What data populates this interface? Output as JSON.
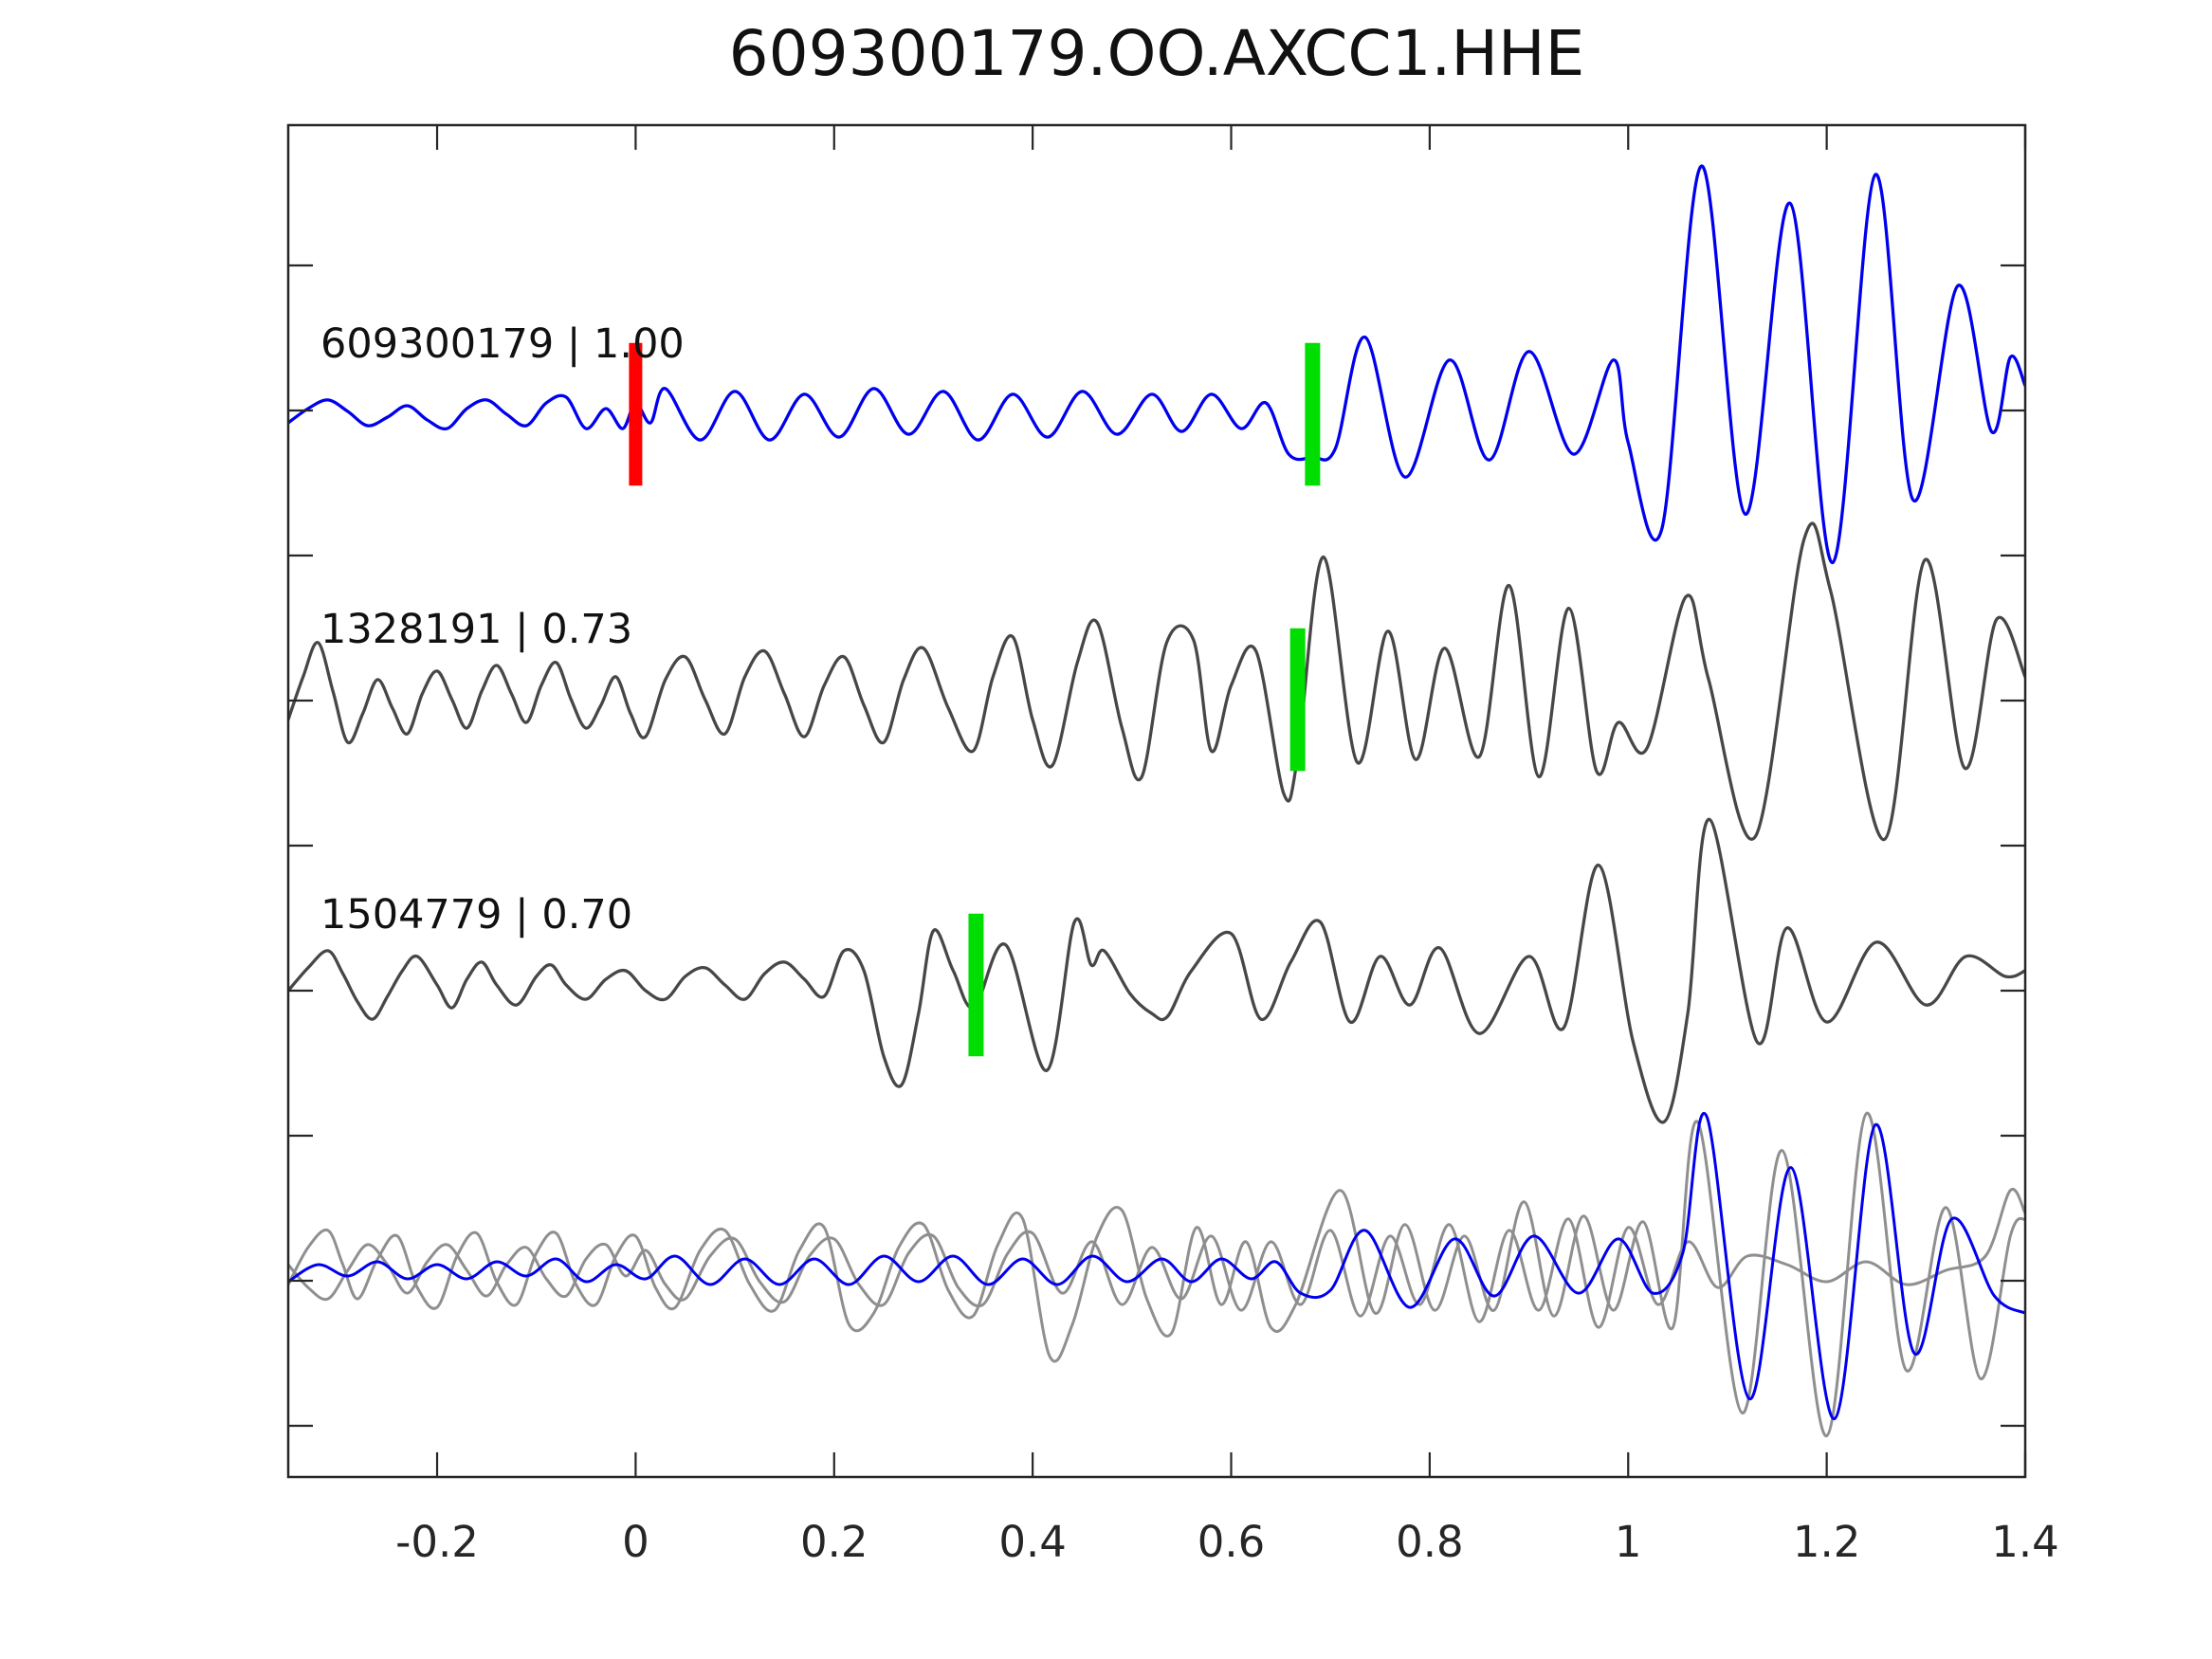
{
  "window": {
    "title": "609300179.OO.AXCC1.HHE"
  },
  "chart_data": {
    "type": "line",
    "title": "609300179.OO.AXCC1.HHE",
    "subtitle": "",
    "xlabel": "",
    "ylabel": "",
    "grid": false,
    "legend": false,
    "x_range": [
      -0.35,
      1.4
    ],
    "x_ticks": [
      -0.2,
      0,
      0.2,
      0.4,
      0.6,
      0.8,
      1,
      1.2,
      1.4
    ],
    "x_tick_labels": [
      "-0.2",
      "0",
      "0.2",
      "0.4",
      "0.6",
      "0.8",
      "1",
      "1.2",
      "1.4"
    ],
    "amplitude_unit_per_row": 1,
    "pick_marker_half_height": 0.25,
    "colors": {
      "template_trace": "#0000ee",
      "detection_trace": "#474747",
      "overlay_gray_trace": "#8f8f8f",
      "pick_green": "#00dd00",
      "pick_red": "#ff0000",
      "axis": "#262626",
      "text": "#111111"
    },
    "rows": [
      {
        "name": "template",
        "id": "609300179",
        "cc": 1.0,
        "label": "609300179 | 1.00",
        "offset": 3,
        "color_key": "template_trace",
        "picks": [
          {
            "x": 0.0,
            "color_key": "pick_red"
          },
          {
            "x": 0.682,
            "color_key": "pick_green"
          }
        ],
        "points": [
          -0.35,
          -0.03,
          -0.33,
          0.02,
          -0.31,
          0.05,
          -0.29,
          0.01,
          -0.27,
          -0.04,
          -0.25,
          -0.01,
          -0.23,
          0.03,
          -0.21,
          -0.02,
          -0.19,
          -0.05,
          -0.17,
          0.02,
          -0.15,
          0.05,
          -0.13,
          0,
          -0.11,
          -0.04,
          -0.09,
          0.04,
          -0.07,
          0.06,
          -0.05,
          -0.05,
          -0.03,
          0.02,
          -0.013,
          -0.05,
          0,
          0.04,
          0.015,
          -0.03,
          0.03,
          0.09,
          0.065,
          -0.09,
          0.1,
          0.08,
          0.135,
          -0.09,
          0.17,
          0.07,
          0.205,
          -0.08,
          0.24,
          0.09,
          0.275,
          -0.07,
          0.31,
          0.08,
          0.345,
          -0.09,
          0.38,
          0.07,
          0.415,
          -0.08,
          0.45,
          0.08,
          0.485,
          -0.07,
          0.52,
          0.07,
          0.55,
          -0.06,
          0.58,
          0.07,
          0.61,
          -0.05,
          0.635,
          0.04,
          0.658,
          -0.14,
          0.682,
          -0.15,
          0.705,
          -0.12,
          0.735,
          0.27,
          0.775,
          -0.22,
          0.82,
          0.19,
          0.86,
          -0.16,
          0.9,
          0.22,
          0.945,
          -0.14,
          0.985,
          0.19,
          1,
          -0.1,
          1.034,
          -0.4,
          1.074,
          0.87,
          1.118,
          -0.35,
          1.163,
          0.74,
          1.206,
          -0.52,
          1.249,
          0.84,
          1.287,
          -0.3,
          1.332,
          0.45,
          1.366,
          -0.06,
          1.385,
          0.2,
          1.4,
          0.1
        ]
      },
      {
        "name": "detection-1",
        "id": "1328191",
        "cc": 0.73,
        "label": "1328191 | 0.73",
        "offset": 2,
        "color_key": "detection_trace",
        "picks": [
          {
            "x": 0.667,
            "color_key": "pick_green"
          }
        ],
        "points": [
          -0.35,
          -0.07,
          -0.335,
          0.08,
          -0.32,
          0.2,
          -0.305,
          0.03,
          -0.29,
          -0.15,
          -0.275,
          -0.05,
          -0.26,
          0.07,
          -0.245,
          -0.03,
          -0.23,
          -0.12,
          -0.215,
          0.02,
          -0.2,
          0.1,
          -0.185,
          0,
          -0.17,
          -0.1,
          -0.155,
          0.03,
          -0.14,
          0.12,
          -0.125,
          0.02,
          -0.11,
          -0.08,
          -0.095,
          0.05,
          -0.08,
          0.13,
          -0.065,
          0,
          -0.05,
          -0.1,
          -0.035,
          -0.02,
          -0.02,
          0.08,
          -0.005,
          -0.05,
          0.01,
          -0.13,
          0.03,
          0.07,
          0.05,
          0.15,
          0.07,
          0,
          0.09,
          -0.12,
          0.11,
          0.08,
          0.13,
          0.17,
          0.15,
          0.02,
          0.17,
          -0.13,
          0.19,
          0.05,
          0.21,
          0.15,
          0.23,
          -0.02,
          0.25,
          -0.15,
          0.27,
          0.07,
          0.29,
          0.18,
          0.315,
          -0.03,
          0.34,
          -0.18,
          0.36,
          0.08,
          0.38,
          0.22,
          0.4,
          -0.07,
          0.42,
          -0.23,
          0.445,
          0.13,
          0.465,
          0.27,
          0.49,
          -0.1,
          0.51,
          -0.27,
          0.535,
          0.2,
          0.562,
          0.21,
          0.58,
          -0.18,
          0.6,
          0.05,
          0.625,
          0.17,
          0.653,
          -0.33,
          0.667,
          -0.2,
          0.693,
          0.5,
          0.727,
          -0.22,
          0.758,
          0.24,
          0.786,
          -0.21,
          0.815,
          0.18,
          0.85,
          -0.2,
          0.88,
          0.4,
          0.91,
          -0.27,
          0.94,
          0.32,
          0.968,
          -0.25,
          0.99,
          -0.08,
          1.019,
          -0.17,
          1.058,
          0.36,
          1.081,
          0.07,
          1.128,
          -0.48,
          1.177,
          0.56,
          1.204,
          0.38,
          1.258,
          -0.49,
          1.299,
          0.49,
          1.339,
          -0.24,
          1.371,
          0.28,
          1.4,
          0.08
        ]
      },
      {
        "name": "detection-2",
        "id": "1504779",
        "cc": 0.7,
        "label": "1504779 | 0.70",
        "offset": 1,
        "color_key": "detection_trace",
        "picks": [
          {
            "x": 0.343,
            "color_key": "pick_green"
          }
        ],
        "points": [
          -0.35,
          -0.02,
          -0.33,
          0.06,
          -0.31,
          0.12,
          -0.295,
          0.04,
          -0.28,
          -0.06,
          -0.265,
          -0.12,
          -0.25,
          -0.04,
          -0.235,
          0.05,
          -0.22,
          0.1,
          -0.2,
          0,
          -0.185,
          -0.08,
          -0.17,
          0.02,
          -0.155,
          0.08,
          -0.14,
          0,
          -0.12,
          -0.07,
          -0.1,
          0.03,
          -0.085,
          0.07,
          -0.07,
          0,
          -0.05,
          -0.05,
          -0.03,
          0.02,
          -0.01,
          0.05,
          0.01,
          -0.02,
          0.03,
          -0.05,
          0.05,
          0.03,
          0.07,
          0.06,
          0.09,
          0,
          0.11,
          -0.05,
          0.13,
          0.04,
          0.15,
          0.08,
          0.17,
          0.02,
          0.19,
          -0.04,
          0.21,
          0.12,
          0.23,
          0.05,
          0.25,
          -0.25,
          0.268,
          -0.35,
          0.285,
          -0.1,
          0.3,
          0.19,
          0.32,
          0.05,
          0.341,
          -0.08,
          0.373,
          0.14,
          0.414,
          -0.3,
          0.442,
          0.22,
          0.459,
          0.07,
          0.472,
          0.12,
          0.498,
          -0.03,
          0.52,
          -0.1,
          0.536,
          -0.11,
          0.56,
          0.05,
          0.6,
          0.18,
          0.63,
          -0.12,
          0.66,
          0.08,
          0.69,
          0.22,
          0.72,
          -0.13,
          0.75,
          0.1,
          0.78,
          -0.07,
          0.81,
          0.13,
          0.85,
          -0.17,
          0.9,
          0.1,
          0.935,
          -0.15,
          0.97,
          0.42,
          1.005,
          -0.2,
          1.036,
          -0.48,
          1.06,
          -0.1,
          1.082,
          0.58,
          1.13,
          -0.2,
          1.16,
          0.2,
          1.2,
          -0.13,
          1.25,
          0.15,
          1.3,
          -0.07,
          1.34,
          0.1,
          1.38,
          0.03,
          1.4,
          0.05
        ]
      },
      {
        "name": "overlay",
        "id": "overlay",
        "label": "",
        "offset": 0,
        "picks": [],
        "components": [
          {
            "name": "overlay-detection-gray-1",
            "color_key": "overlay_gray_trace",
            "points": [
              -0.35,
              -0.05,
              -0.33,
              0.08,
              -0.31,
              0.14,
              -0.295,
              0.02,
              -0.28,
              -0.1,
              -0.26,
              0.04,
              -0.24,
              0.12,
              -0.22,
              -0.06,
              -0.2,
              -0.13,
              -0.18,
              0.05,
              -0.16,
              0.13,
              -0.14,
              -0.04,
              -0.12,
              -0.12,
              -0.1,
              0.06,
              -0.08,
              0.13,
              -0.06,
              -0.05,
              -0.04,
              -0.12,
              -0.02,
              0.05,
              0,
              0.12,
              0.02,
              -0.06,
              0.04,
              -0.13,
              0.065,
              0.07,
              0.09,
              0.14,
              0.115,
              -0.05,
              0.14,
              -0.14,
              0.165,
              0.07,
              0.19,
              0.15,
              0.215,
              -0.19,
              0.24,
              -0.15,
              0.265,
              0.08,
              0.29,
              0.16,
              0.315,
              -0.07,
              0.34,
              -0.16,
              0.365,
              0.09,
              0.39,
              0.18,
              0.417,
              -0.3,
              0.44,
              -0.19,
              0.465,
              0.12,
              0.49,
              0.21,
              0.515,
              -0.1,
              0.54,
              -0.22,
              0.565,
              0.15,
              0.59,
              -0.12,
              0.615,
              0.1,
              0.64,
              -0.2,
              0.665,
              -0.12,
              0.71,
              0.28,
              0.745,
              -0.15,
              0.775,
              0.16,
              0.805,
              -0.14,
              0.835,
              0.12,
              0.865,
              -0.14,
              0.895,
              0.24,
              0.925,
              -0.16,
              0.955,
              0.19,
              0.985,
              -0.14,
              1.015,
              0.17,
              1.045,
              -0.2,
              1.07,
              0.52,
              1.115,
              -0.5,
              1.155,
              0.42,
              1.2,
              -0.58,
              1.24,
              0.55,
              1.28,
              -0.35,
              1.32,
              0.22,
              1.355,
              -0.38,
              1.385,
              0.12,
              1.4,
              0.18
            ]
          },
          {
            "name": "overlay-detection-gray-2",
            "color_key": "overlay_gray_trace",
            "points": [
              -0.35,
              0.02,
              -0.33,
              -0.06,
              -0.31,
              -0.1,
              -0.29,
              0,
              -0.27,
              0.09,
              -0.25,
              0.02,
              -0.23,
              -0.08,
              -0.21,
              0.03,
              -0.19,
              0.09,
              -0.17,
              0,
              -0.15,
              -0.09,
              -0.13,
              0.02,
              -0.11,
              0.08,
              -0.09,
              -0.03,
              -0.07,
              -0.09,
              -0.05,
              0.04,
              -0.03,
              0.09,
              -0.01,
              -0.02,
              0.01,
              0.07,
              0.03,
              -0.05,
              0.05,
              -0.1,
              0.075,
              0.05,
              0.1,
              0.11,
              0.125,
              -0.04,
              0.15,
              -0.11,
              0.175,
              0.05,
              0.2,
              0.11,
              0.225,
              -0.05,
              0.25,
              -0.12,
              0.275,
              0.06,
              0.3,
              0.12,
              0.325,
              -0.06,
              0.35,
              -0.12,
              0.375,
              0.06,
              0.4,
              0.13,
              0.43,
              -0.08,
              0.46,
              0.1,
              0.49,
              -0.12,
              0.52,
              0.08,
              0.55,
              -0.1,
              0.58,
              0.12,
              0.61,
              -0.14,
              0.64,
              0.1,
              0.67,
              -0.12,
              0.7,
              0.14,
              0.73,
              -0.16,
              0.76,
              0.12,
              0.79,
              -0.12,
              0.82,
              0.16,
              0.85,
              -0.18,
              0.88,
              0.14,
              0.91,
              -0.14,
              0.94,
              0.18,
              0.97,
              -0.2,
              1,
              0.15,
              1.03,
              -0.12,
              1.06,
              0.1,
              1.09,
              -0.06,
              1.12,
              0.05,
              1.16,
              0.02,
              1.2,
              -0.04,
              1.24,
              0.03,
              1.28,
              -0.05,
              1.32,
              0,
              1.36,
              0.05,
              1.385,
              0.28,
              1.4,
              0.2
            ]
          },
          {
            "name": "overlay-template-blue",
            "color_key": "template_trace",
            "points": [
              -0.35,
              -0.04,
              -0.32,
              0.02,
              -0.29,
              -0.02,
              -0.26,
              0.03,
              -0.23,
              -0.03,
              -0.2,
              0.02,
              -0.17,
              -0.03,
              -0.14,
              0.03,
              -0.11,
              -0.02,
              -0.08,
              0.04,
              -0.05,
              -0.04,
              -0.02,
              0.02,
              0.01,
              -0.03,
              0.04,
              0.05,
              0.075,
              -0.05,
              0.11,
              0.04,
              0.145,
              -0.05,
              0.18,
              0.04,
              0.215,
              -0.05,
              0.25,
              0.05,
              0.285,
              -0.04,
              0.32,
              0.05,
              0.355,
              -0.05,
              0.39,
              0.04,
              0.425,
              -0.05,
              0.46,
              0.05,
              0.495,
              -0.04,
              0.53,
              0.04,
              0.56,
              -0.04,
              0.59,
              0.04,
              0.62,
              -0.03,
              0.645,
              0.03,
              0.67,
              -0.08,
              0.7,
              -0.07,
              0.735,
              0.14,
              0.78,
              -0.13,
              0.825,
              0.11,
              0.865,
              -0.09,
              0.905,
              0.12,
              0.95,
              -0.08,
              0.99,
              0.11,
              1.025,
              -0.08,
              1.055,
              0.06,
              1.079,
              0.54,
              1.122,
              -0.45,
              1.164,
              0.36,
              1.208,
              -0.52,
              1.249,
              0.51,
              1.288,
              -0.29,
              1.326,
              0.18,
              1.369,
              -0.09,
              1.4,
              -0.15
            ]
          }
        ]
      }
    ]
  }
}
